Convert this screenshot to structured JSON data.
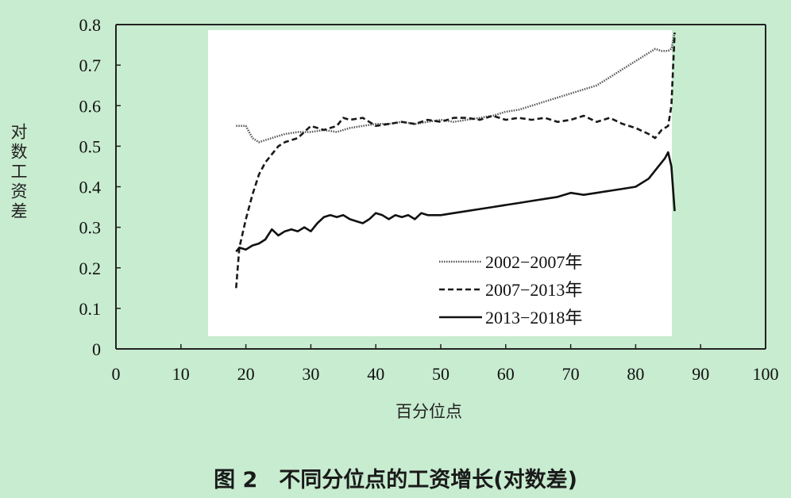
{
  "caption": "图 2　不同分位点的工资增长(对数差)",
  "chart_data": {
    "type": "line",
    "title": "",
    "xlabel": "百分位点",
    "ylabel": "对数工资差",
    "xlim": [
      0,
      100
    ],
    "ylim": [
      0,
      0.8
    ],
    "x_ticks": [
      "0",
      "10",
      "20",
      "30",
      "40",
      "50",
      "60",
      "70",
      "80",
      "90",
      "100"
    ],
    "y_ticks": [
      "0",
      "0.1",
      "0.2",
      "0.3",
      "0.4",
      "0.5",
      "0.6",
      "0.7",
      "0.8"
    ],
    "grid": false,
    "legend_position": "bottom-right",
    "series": [
      {
        "name": "2002−2007年",
        "style": "dotted",
        "x": [
          18.5,
          20,
          21,
          22,
          24,
          26,
          28,
          30,
          32,
          34,
          36,
          38,
          40,
          42,
          44,
          46,
          48,
          50,
          52,
          54,
          56,
          58,
          60,
          62,
          64,
          66,
          68,
          70,
          72,
          74,
          76,
          78,
          80,
          82,
          83,
          84,
          85,
          85.5,
          86
        ],
        "y": [
          0.55,
          0.55,
          0.52,
          0.51,
          0.52,
          0.53,
          0.535,
          0.535,
          0.54,
          0.535,
          0.545,
          0.55,
          0.555,
          0.555,
          0.56,
          0.555,
          0.56,
          0.565,
          0.56,
          0.565,
          0.57,
          0.575,
          0.585,
          0.59,
          0.6,
          0.61,
          0.62,
          0.63,
          0.64,
          0.65,
          0.67,
          0.69,
          0.71,
          0.73,
          0.74,
          0.735,
          0.735,
          0.74,
          0.78
        ]
      },
      {
        "name": "2007−2013年",
        "style": "dashed",
        "x": [
          18.5,
          19,
          20,
          21,
          22,
          23,
          24,
          25,
          26,
          28,
          30,
          32,
          34,
          35,
          36,
          38,
          40,
          42,
          44,
          46,
          48,
          50,
          52,
          54,
          56,
          58,
          60,
          62,
          64,
          66,
          68,
          70,
          72,
          74,
          76,
          78,
          80,
          82,
          83,
          84,
          85,
          85.5,
          86
        ],
        "y": [
          0.15,
          0.25,
          0.32,
          0.38,
          0.43,
          0.46,
          0.48,
          0.5,
          0.51,
          0.52,
          0.55,
          0.54,
          0.55,
          0.57,
          0.565,
          0.57,
          0.55,
          0.555,
          0.56,
          0.555,
          0.565,
          0.56,
          0.57,
          0.57,
          0.565,
          0.575,
          0.565,
          0.57,
          0.565,
          0.57,
          0.56,
          0.565,
          0.575,
          0.56,
          0.57,
          0.555,
          0.545,
          0.53,
          0.52,
          0.54,
          0.55,
          0.6,
          0.78
        ]
      },
      {
        "name": "2013−2018年",
        "style": "solid",
        "x": [
          18.5,
          19,
          20,
          21,
          22,
          23,
          24,
          25,
          26,
          27,
          28,
          29,
          30,
          31,
          32,
          33,
          34,
          35,
          36,
          37,
          38,
          39,
          40,
          41,
          42,
          43,
          44,
          45,
          46,
          47,
          48,
          50,
          52,
          54,
          56,
          58,
          60,
          62,
          64,
          66,
          68,
          70,
          72,
          74,
          76,
          78,
          80,
          82,
          83,
          84,
          84.5,
          85,
          85.5,
          86
        ],
        "y": [
          0.24,
          0.25,
          0.245,
          0.255,
          0.26,
          0.27,
          0.295,
          0.28,
          0.29,
          0.295,
          0.29,
          0.3,
          0.29,
          0.31,
          0.325,
          0.33,
          0.325,
          0.33,
          0.32,
          0.315,
          0.31,
          0.32,
          0.335,
          0.33,
          0.32,
          0.33,
          0.325,
          0.33,
          0.32,
          0.335,
          0.33,
          0.33,
          0.335,
          0.34,
          0.345,
          0.35,
          0.355,
          0.36,
          0.365,
          0.37,
          0.375,
          0.385,
          0.38,
          0.385,
          0.39,
          0.395,
          0.4,
          0.42,
          0.44,
          0.46,
          0.47,
          0.485,
          0.45,
          0.34
        ]
      }
    ]
  }
}
